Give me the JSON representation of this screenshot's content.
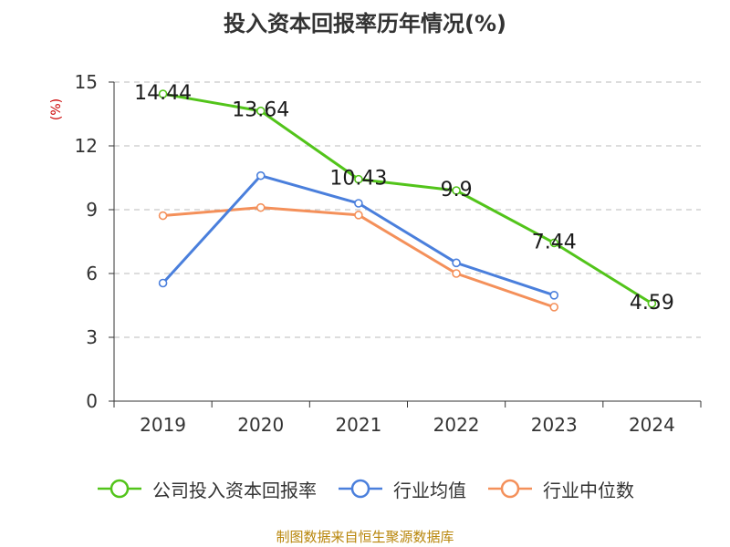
{
  "chart_data": {
    "type": "line",
    "title": "投入资本回报率历年情况(%)",
    "ylabel": "(%)",
    "categories": [
      "2019",
      "2020",
      "2021",
      "2022",
      "2023",
      "2024"
    ],
    "ylim": [
      0,
      15
    ],
    "yticks": [
      "0",
      "3",
      "6",
      "9",
      "12",
      "15"
    ],
    "grid": true,
    "legend_position": "bottom",
    "series": [
      {
        "name": "公司投入资本回报率",
        "color": "#52c41a",
        "values": [
          14.44,
          13.64,
          10.43,
          9.9,
          7.44,
          4.59
        ],
        "labels": [
          "14.44",
          "13.64",
          "10.43",
          "9.9",
          "7.44",
          "4.59"
        ]
      },
      {
        "name": "行业均值",
        "color": "#4a7fdc",
        "values": [
          5.55,
          10.6,
          9.3,
          6.5,
          4.98,
          null
        ]
      },
      {
        "name": "行业中位数",
        "color": "#f4905a",
        "values": [
          8.72,
          9.1,
          8.75,
          6.0,
          4.42,
          null
        ]
      }
    ]
  },
  "source": "制图数据来自恒生聚源数据库"
}
